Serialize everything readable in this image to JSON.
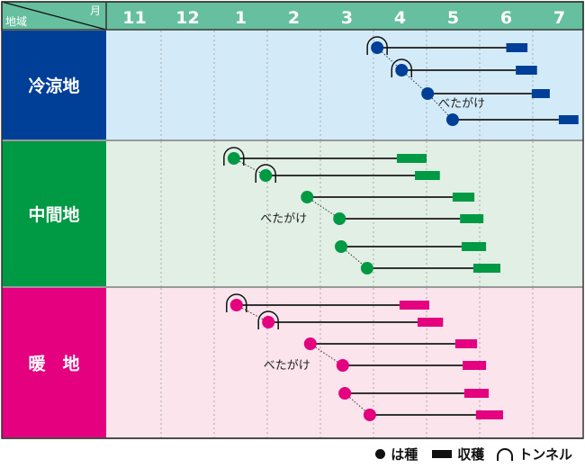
{
  "chart_data": {
    "type": "gantt",
    "corner_label_top": "月",
    "corner_label_bottom": "地域",
    "months": [
      "11",
      "12",
      "1",
      "2",
      "3",
      "4",
      "5",
      "6",
      "7"
    ],
    "note_label": "べたがけ",
    "colors": {
      "header": "#66bf9f",
      "grid": "#999999"
    },
    "regions": [
      {
        "name": "冷涼地",
        "label_color": "#003f98",
        "bg": "#d3ebf9",
        "mark_color": "#003f98",
        "rows": [
          {
            "sow": 4.07,
            "harvest": [
              6.5,
              6.9
            ],
            "tunnel": true
          },
          {
            "sow": 4.53,
            "harvest": [
              6.68,
              7.08
            ],
            "tunnel": true
          },
          {
            "sow": 5.02,
            "harvest": [
              6.98,
              7.32
            ],
            "tunnel": false
          },
          {
            "sow": 5.49,
            "harvest": [
              7.49,
              7.86
            ],
            "tunnel": false
          }
        ],
        "links": [
          [
            0,
            1
          ],
          [
            1,
            2
          ],
          [
            2,
            3
          ]
        ],
        "note_row": 2
      },
      {
        "name": "中間地",
        "label_color": "#009944",
        "bg": "#e2efe5",
        "mark_color": "#009944",
        "rows": [
          {
            "sow": 1.37,
            "harvest": [
              4.44,
              5.0
            ],
            "tunnel": true
          },
          {
            "sow": 1.97,
            "harvest": [
              4.78,
              5.25
            ],
            "tunnel": true
          },
          {
            "sow": 2.75,
            "harvest": [
              5.49,
              5.9
            ],
            "tunnel": false
          },
          {
            "sow": 3.36,
            "harvest": [
              5.63,
              6.07
            ],
            "tunnel": false
          },
          {
            "sow": 3.39,
            "harvest": [
              5.66,
              6.12
            ],
            "tunnel": false
          },
          {
            "sow": 3.88,
            "harvest": [
              5.88,
              6.39
            ],
            "tunnel": false
          }
        ],
        "links": [
          [
            0,
            1
          ],
          [
            2,
            3
          ],
          [
            4,
            5
          ]
        ],
        "note_row": 3
      },
      {
        "name": "暖　地",
        "label_color": "#e4007f",
        "bg": "#fbe4ec",
        "mark_color": "#e4007f",
        "rows": [
          {
            "sow": 1.42,
            "harvest": [
              4.49,
              5.05
            ],
            "tunnel": true
          },
          {
            "sow": 2.02,
            "harvest": [
              4.83,
              5.31
            ],
            "tunnel": true
          },
          {
            "sow": 2.81,
            "harvest": [
              5.54,
              5.95
            ],
            "tunnel": false
          },
          {
            "sow": 3.42,
            "harvest": [
              5.68,
              6.12
            ],
            "tunnel": false
          },
          {
            "sow": 3.46,
            "harvest": [
              5.71,
              6.17
            ],
            "tunnel": false
          },
          {
            "sow": 3.93,
            "harvest": [
              5.93,
              6.44
            ],
            "tunnel": false
          }
        ],
        "links": [
          [
            0,
            1
          ],
          [
            2,
            3
          ],
          [
            4,
            5
          ]
        ],
        "note_row": 3
      }
    ]
  },
  "legend": {
    "sow": "は種",
    "harvest": "収穫",
    "tunnel": "トンネル"
  }
}
